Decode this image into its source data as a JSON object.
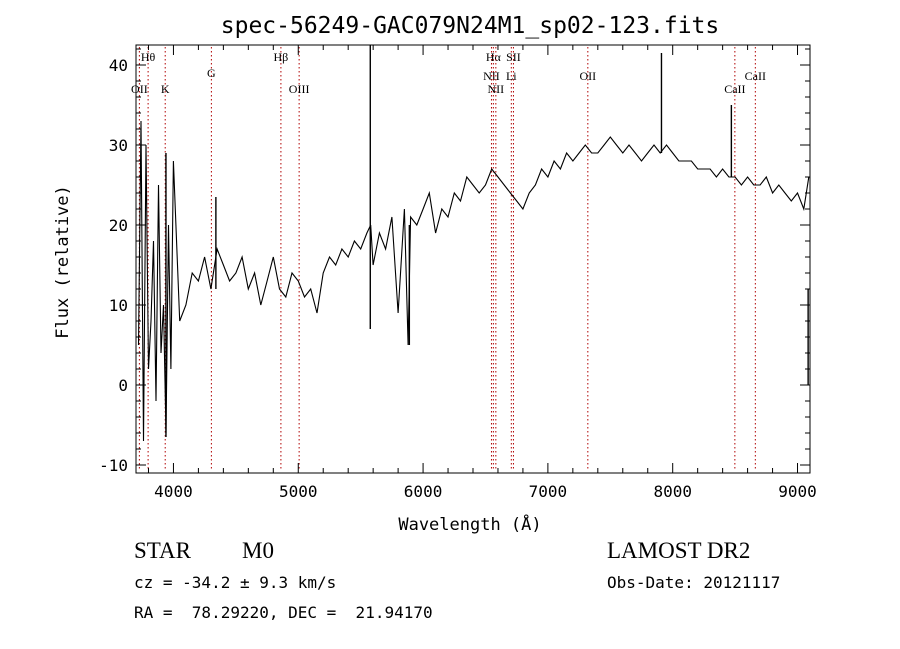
{
  "chart_data": {
    "type": "line",
    "title": "spec-56249-GAC079N24M1_sp02-123.fits",
    "xlabel": "Wavelength (Å)",
    "ylabel": "Flux (relative)",
    "xlim": [
      3700,
      9100
    ],
    "ylim": [
      -11,
      42.5
    ],
    "xticks": [
      4000,
      5000,
      6000,
      7000,
      8000,
      9000
    ],
    "yticks": [
      -10,
      0,
      10,
      20,
      30,
      40
    ],
    "grid": false,
    "series": [
      {
        "x": [
          3720,
          3740,
          3760,
          3780,
          3800,
          3820,
          3840,
          3860,
          3880,
          3900,
          3920,
          3940,
          3960,
          3980,
          4000,
          4050,
          4100,
          4150,
          4200,
          4250,
          4300,
          4350,
          4400,
          4450,
          4500,
          4550,
          4600,
          4650,
          4700,
          4750,
          4800,
          4850,
          4900,
          4950,
          5000,
          5050,
          5100,
          5150,
          5200,
          5250,
          5300,
          5350,
          5400,
          5450,
          5500,
          5550,
          5580,
          5600,
          5650,
          5700,
          5750,
          5800,
          5850,
          5880,
          5900,
          5950,
          6000,
          6050,
          6100,
          6150,
          6200,
          6250,
          6300,
          6350,
          6400,
          6450,
          6500,
          6550,
          6600,
          6650,
          6700,
          6750,
          6800,
          6850,
          6900,
          6950,
          7000,
          7050,
          7100,
          7150,
          7200,
          7250,
          7300,
          7350,
          7400,
          7450,
          7500,
          7550,
          7600,
          7650,
          7700,
          7750,
          7800,
          7850,
          7900,
          7950,
          8000,
          8050,
          8100,
          8150,
          8200,
          8250,
          8300,
          8350,
          8400,
          8450,
          8500,
          8550,
          8600,
          8650,
          8700,
          8750,
          8800,
          8850,
          8900,
          8950,
          9000,
          9050,
          9090
        ],
        "values": [
          5,
          33,
          -7,
          30,
          2,
          8,
          18,
          -2,
          25,
          4,
          10,
          -6,
          20,
          2,
          28,
          8,
          10,
          14,
          13,
          16,
          12,
          17,
          15,
          13,
          14,
          16,
          12,
          14,
          10,
          13,
          16,
          12,
          11,
          14,
          13,
          11,
          12,
          9,
          14,
          16,
          15,
          17,
          16,
          18,
          17,
          19,
          20,
          15,
          19,
          17,
          21,
          9,
          22,
          5,
          21,
          20,
          22,
          24,
          19,
          22,
          21,
          24,
          23,
          26,
          25,
          24,
          25,
          27,
          26,
          25,
          24,
          23,
          22,
          24,
          25,
          27,
          26,
          28,
          27,
          29,
          28,
          29,
          30,
          29,
          29,
          30,
          31,
          30,
          29,
          30,
          29,
          28,
          29,
          30,
          29,
          30,
          29,
          28,
          28,
          28,
          27,
          27,
          27,
          26,
          27,
          26,
          26,
          25,
          26,
          25,
          25,
          26,
          24,
          25,
          24,
          23,
          24,
          22,
          26
        ]
      }
    ],
    "spikes": [
      {
        "x": 5577,
        "y_bottom": 7,
        "y_top": 42.5
      },
      {
        "x": 5890,
        "y_bottom": 5,
        "y_top": 20
      },
      {
        "x": 7910,
        "y_bottom": 29,
        "y_top": 41.5
      },
      {
        "x": 8470,
        "y_bottom": 26,
        "y_top": 35
      },
      {
        "x": 4340,
        "y_bottom": 12,
        "y_top": 23.5
      },
      {
        "x": 3940,
        "y_bottom": -6.5,
        "y_top": 29
      },
      {
        "x": 9085,
        "y_bottom": 0,
        "y_top": 12
      }
    ],
    "lines": [
      {
        "x": 3727,
        "label": "OII",
        "row": 2
      },
      {
        "x": 3797,
        "label": "Hθ",
        "row": 1
      },
      {
        "x": 3934,
        "label": "K",
        "row": 2
      },
      {
        "x": 4304,
        "label": "G",
        "row": 1.5
      },
      {
        "x": 4861,
        "label": "Hβ",
        "row": 1
      },
      {
        "x": 5007,
        "label": "OIII",
        "row": 2
      },
      {
        "x": 6548,
        "label": "NII",
        "row": 1.6
      },
      {
        "x": 6563,
        "label": "Hα",
        "row": 1
      },
      {
        "x": 6583,
        "label": "NII",
        "row": 2
      },
      {
        "x": 6707,
        "label": "Li",
        "row": 1.6
      },
      {
        "x": 6724,
        "label": "SII",
        "row": 1
      },
      {
        "x": 7320,
        "label": "OII",
        "row": 1.6
      },
      {
        "x": 8498,
        "label": "CaII",
        "row": 2
      },
      {
        "x": 8662,
        "label": "CaII",
        "row": 1.6
      }
    ]
  },
  "info": {
    "class_label": "STAR",
    "subclass_label": "M0",
    "survey": "LAMOST DR2",
    "redshift": "cz = -34.2 ± 9.3 km/s",
    "obs_date": "Obs-Date: 20121117",
    "coords": "RA =  78.29220, DEC =  21.94170"
  }
}
